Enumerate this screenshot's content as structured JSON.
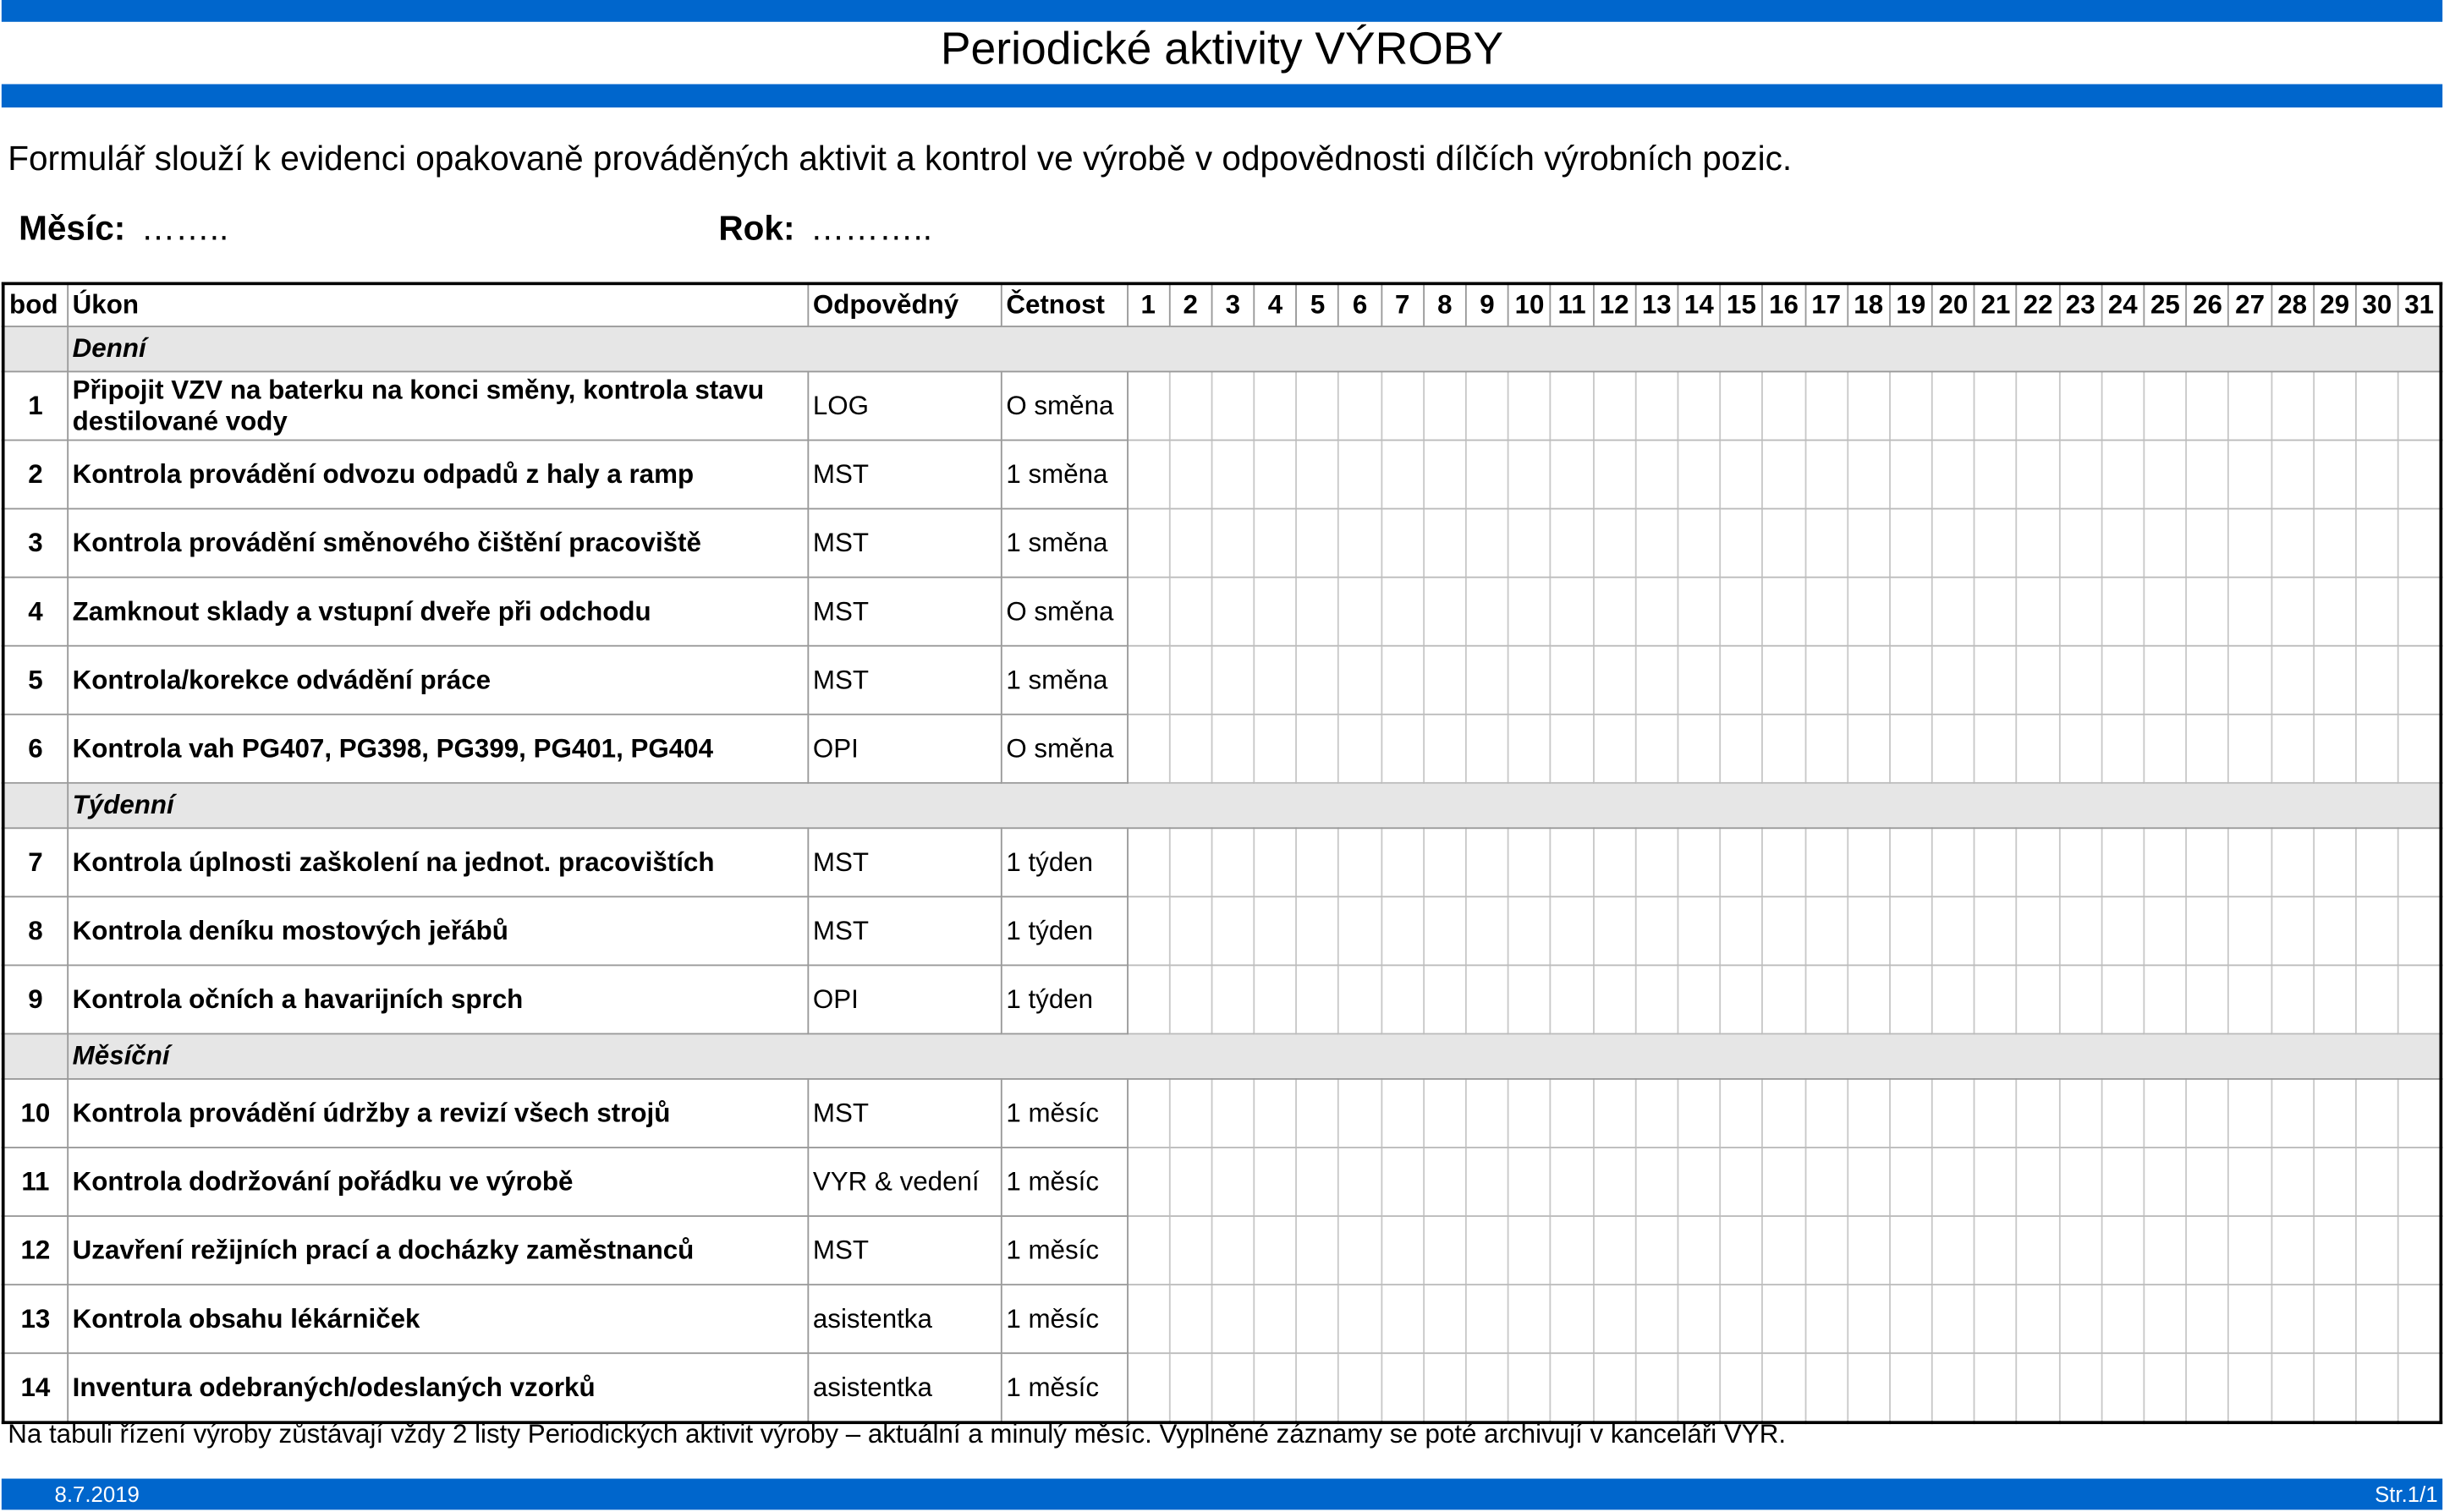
{
  "header": {
    "title": "Periodické aktivity VÝROBY",
    "description": "Formulář slouží k evidenci opakovaně prováděných aktivit a kontrol ve výrobě v odpovědnosti dílčích výrobních pozic.",
    "month_label": "Měsíc:",
    "month_value": "……..",
    "year_label": "Rok:",
    "year_value": "………..",
    "accent_color": "#0066CC"
  },
  "table": {
    "columns": [
      "bod",
      "Úkon",
      "Odpovědný",
      "Četnost"
    ],
    "days": [
      "1",
      "2",
      "3",
      "4",
      "5",
      "6",
      "7",
      "8",
      "9",
      "10",
      "11",
      "12",
      "13",
      "14",
      "15",
      "16",
      "17",
      "18",
      "19",
      "20",
      "21",
      "22",
      "23",
      "24",
      "25",
      "26",
      "27",
      "28",
      "29",
      "30",
      "31"
    ],
    "groups": [
      {
        "name": "Denní",
        "rows": [
          {
            "bod": "1",
            "ukon": "Připojit VZV na baterku na konci směny, kontrola stavu destilované vody",
            "odpovedny": "LOG",
            "cetnost": "O směna"
          },
          {
            "bod": "2",
            "ukon": "Kontrola provádění odvozu odpadů z haly a ramp",
            "odpovedny": "MST",
            "cetnost": "1 směna"
          },
          {
            "bod": "3",
            "ukon": "Kontrola provádění směnového čištění pracoviště",
            "odpovedny": "MST",
            "cetnost": "1 směna"
          },
          {
            "bod": "4",
            "ukon": "Zamknout sklady a vstupní dveře při odchodu",
            "odpovedny": "MST",
            "cetnost": "O směna"
          },
          {
            "bod": "5",
            "ukon": "Kontrola/korekce odvádění práce",
            "odpovedny": "MST",
            "cetnost": "1 směna"
          },
          {
            "bod": "6",
            "ukon": "Kontrola vah  PG407, PG398, PG399, PG401, PG404",
            "odpovedny": "OPI",
            "cetnost": "O směna"
          }
        ]
      },
      {
        "name": "Týdenní",
        "rows": [
          {
            "bod": "7",
            "ukon": "Kontrola úplnosti zaškolení na jednot. pracovištích",
            "odpovedny": "MST",
            "cetnost": "1 týden"
          },
          {
            "bod": "8",
            "ukon": "Kontrola deníku mostových jeřábů",
            "odpovedny": "MST",
            "cetnost": "1 týden"
          },
          {
            "bod": "9",
            "ukon": "Kontrola očních a havarijních sprch",
            "odpovedny": "OPI",
            "cetnost": "1 týden"
          }
        ]
      },
      {
        "name": "Měsíční",
        "rows": [
          {
            "bod": "10",
            "ukon": "Kontrola provádění údržby a revizí všech strojů",
            "odpovedny": "MST",
            "cetnost": "1 měsíc"
          },
          {
            "bod": "11",
            "ukon": "Kontrola dodržování pořádku  ve výrobě",
            "odpovedny": "VYR & vedení",
            "cetnost": "1 měsíc"
          },
          {
            "bod": "12",
            "ukon": "Uzavření režijních prací a docházky zaměstnanců",
            "odpovedny": "MST",
            "cetnost": "1 měsíc"
          },
          {
            "bod": "13",
            "ukon": "Kontrola obsahu lékárniček",
            "odpovedny": "asistentka",
            "cetnost": "1 měsíc"
          },
          {
            "bod": "14",
            "ukon": "Inventura odebraných/odeslaných vzorků",
            "odpovedny": "asistentka",
            "cetnost": "1 měsíc"
          }
        ]
      }
    ]
  },
  "note": "Na tabuli řízení výroby zůstávají vždy 2 listy Periodických aktivit výroby – aktuální a minulý měsíc. Vyplněné záznamy se poté archivují v kanceláři VYR.",
  "footer": {
    "date": "8.7.2019",
    "page": "Str.1/1"
  }
}
